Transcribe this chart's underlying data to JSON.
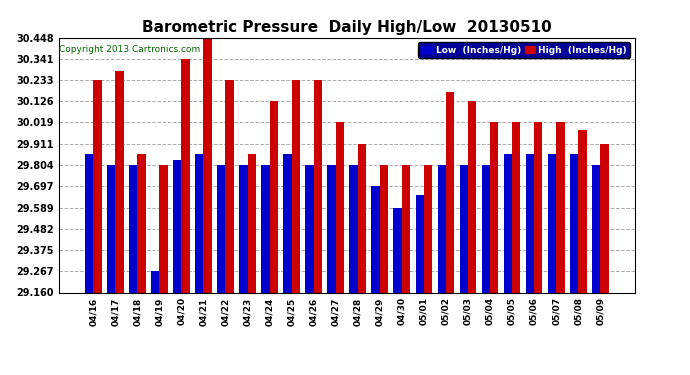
{
  "title": "Barometric Pressure  Daily High/Low  20130510",
  "copyright": "Copyright 2013 Cartronics.com",
  "categories": [
    "04/16",
    "04/17",
    "04/18",
    "04/19",
    "04/20",
    "04/21",
    "04/22",
    "04/23",
    "04/24",
    "04/25",
    "04/26",
    "04/27",
    "04/28",
    "04/29",
    "04/30",
    "05/01",
    "05/02",
    "05/03",
    "05/04",
    "05/05",
    "05/06",
    "05/07",
    "05/08",
    "05/09"
  ],
  "low_values": [
    29.86,
    29.804,
    29.804,
    29.267,
    29.83,
    29.858,
    29.804,
    29.804,
    29.804,
    29.858,
    29.804,
    29.804,
    29.804,
    29.697,
    29.589,
    29.65,
    29.804,
    29.804,
    29.804,
    29.858,
    29.858,
    29.858,
    29.858,
    29.804
  ],
  "high_values": [
    30.233,
    30.28,
    29.858,
    29.804,
    30.341,
    30.448,
    30.233,
    29.858,
    30.126,
    30.233,
    30.233,
    30.019,
    29.911,
    29.804,
    29.804,
    29.804,
    30.175,
    30.126,
    30.019,
    30.019,
    30.019,
    30.019,
    29.98,
    29.911
  ],
  "yticks": [
    29.16,
    29.267,
    29.375,
    29.482,
    29.589,
    29.697,
    29.804,
    29.911,
    30.019,
    30.126,
    30.233,
    30.341,
    30.448
  ],
  "ylim_min": 29.16,
  "ylim_max": 30.448,
  "low_color": "#0000cc",
  "high_color": "#cc0000",
  "bg_color": "#ffffff",
  "grid_color": "#888888",
  "title_fontsize": 11,
  "copyright_fontsize": 6.5,
  "legend_low_label": "Low  (Inches/Hg)",
  "legend_high_label": "High  (Inches/Hg)"
}
